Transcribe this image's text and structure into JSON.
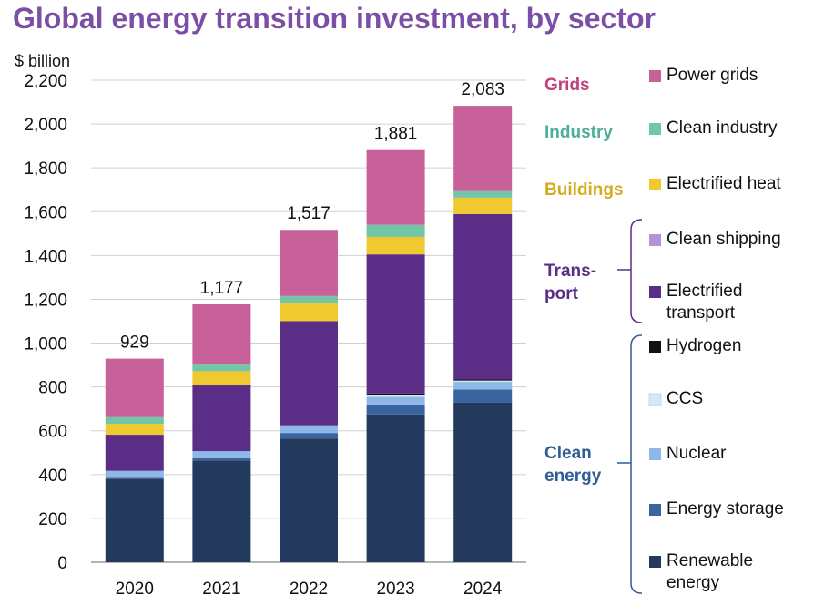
{
  "title": "Global energy transition investment, by sector",
  "chart_data": {
    "type": "bar",
    "stacked": true,
    "unit_label": "$ billion",
    "ylim": [
      0,
      2200
    ],
    "yticks": [
      "0",
      "200",
      "400",
      "600",
      "800",
      "1,000",
      "1,200",
      "1,400",
      "1,600",
      "1,800",
      "2,000",
      "2,200"
    ],
    "ytick_values": [
      0,
      200,
      400,
      600,
      800,
      1000,
      1200,
      1400,
      1600,
      1800,
      2000,
      2200
    ],
    "grid": true,
    "legend_position": "right",
    "categories": [
      "2020",
      "2021",
      "2022",
      "2023",
      "2024"
    ],
    "totals": [
      "929",
      "1,177",
      "1,517",
      "1,881",
      "2,083"
    ],
    "series": [
      {
        "name": "Renewable energy",
        "color": "#233a5e",
        "values": [
          380,
          465,
          565,
          675,
          728
        ]
      },
      {
        "name": "Energy storage",
        "color": "#3a64a0",
        "values": [
          5,
          10,
          25,
          45,
          60
        ]
      },
      {
        "name": "Nuclear",
        "color": "#8fb8e8",
        "values": [
          32,
          32,
          35,
          35,
          35
        ]
      },
      {
        "name": "CCS",
        "color": "#d6e8f8",
        "values": [
          0,
          0,
          0,
          10,
          6
        ]
      },
      {
        "name": "Hydrogen",
        "color": "#111111",
        "values": [
          0,
          0,
          0,
          5,
          5
        ]
      },
      {
        "name": "Electrified transport",
        "color": "#5a2e86",
        "values": [
          165,
          300,
          475,
          635,
          755
        ]
      },
      {
        "name": "Clean shipping",
        "color": "#b096d6",
        "values": [
          0,
          0,
          0,
          0,
          0
        ]
      },
      {
        "name": "Electrified heat",
        "color": "#f0c830",
        "values": [
          50,
          65,
          85,
          80,
          75
        ]
      },
      {
        "name": "Clean industry",
        "color": "#72c6a6",
        "values": [
          30,
          30,
          30,
          55,
          30
        ]
      },
      {
        "name": "Power grids",
        "color": "#c8619a",
        "values": [
          267,
          275,
          302,
          341,
          389
        ]
      }
    ],
    "groups": [
      {
        "name": "Grids",
        "color": "#c0417f"
      },
      {
        "name": "Industry",
        "color": "#4fae97"
      },
      {
        "name": "Buildings",
        "color": "#d4ab1a"
      },
      {
        "name": "Trans- port",
        "lines": [
          "Trans-",
          "port"
        ],
        "color": "#5a2e86"
      },
      {
        "name": "Clean energy",
        "lines": [
          "Clean",
          "energy"
        ],
        "color": "#2f5d95"
      }
    ],
    "legend": [
      {
        "label": "Power grids",
        "lines": [
          "Power grids"
        ],
        "color": "#c8619a"
      },
      {
        "label": "Clean industry",
        "lines": [
          "Clean industry"
        ],
        "color": "#72c6a6"
      },
      {
        "label": "Electrified heat",
        "lines": [
          "Electrified heat"
        ],
        "color": "#f0c830"
      },
      {
        "label": "Clean shipping",
        "lines": [
          "Clean shipping"
        ],
        "color": "#b096d6"
      },
      {
        "label": "Electrified transport",
        "lines": [
          "Electrified",
          "transport"
        ],
        "color": "#5a2e86"
      },
      {
        "label": "Hydrogen",
        "lines": [
          "Hydrogen"
        ],
        "color": "#111111"
      },
      {
        "label": "CCS",
        "lines": [
          "CCS"
        ],
        "color": "#d6e8f8"
      },
      {
        "label": "Nuclear",
        "lines": [
          "Nuclear"
        ],
        "color": "#8fb8e8"
      },
      {
        "label": "Energy storage",
        "lines": [
          "Energy storage"
        ],
        "color": "#3a64a0"
      },
      {
        "label": "Renewable energy",
        "lines": [
          "Renewable",
          "energy"
        ],
        "color": "#233a5e"
      }
    ]
  }
}
